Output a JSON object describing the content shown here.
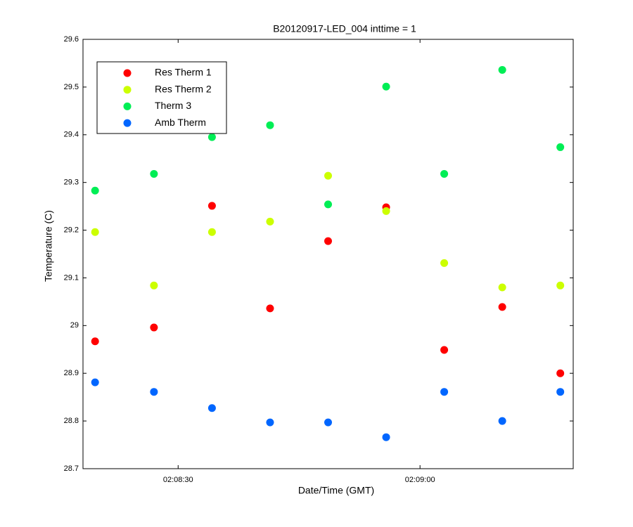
{
  "chart_data": {
    "type": "scatter",
    "title": "B20120917-LED_004 inttime = 1",
    "x_label": "Date/Time (GMT)",
    "y_label": "Temperature (C)",
    "x": [
      7699.7,
      7707.0,
      7714.2,
      7721.4,
      7728.6,
      7735.8,
      7743.0,
      7750.2,
      7757.4
    ],
    "series": [
      {
        "name": "Res Therm 1",
        "color": "#ff0000",
        "values": [
          28.967,
          28.996,
          29.251,
          29.036,
          29.177,
          29.248,
          28.949,
          29.039,
          28.9
        ]
      },
      {
        "name": "Res Therm 2",
        "color": "#ccff00",
        "values": [
          29.196,
          29.084,
          29.196,
          29.218,
          29.314,
          29.24,
          29.131,
          29.08,
          29.084
        ]
      },
      {
        "name": "Therm 3",
        "color": "#00ee55",
        "values": [
          29.283,
          29.318,
          29.395,
          29.42,
          29.254,
          29.501,
          29.318,
          29.536,
          29.374
        ]
      },
      {
        "name": "Amb Therm",
        "color": "#0066ff",
        "values": [
          28.881,
          28.861,
          28.827,
          28.797,
          28.797,
          28.766,
          28.861,
          28.8,
          28.861
        ]
      }
    ],
    "xlim": [
      7698.2,
      7759.0
    ],
    "xticks": [
      {
        "value": 7710,
        "label": "02:08:30"
      },
      {
        "value": 7740,
        "label": "02:09:00"
      }
    ],
    "ylim": [
      28.7,
      29.6
    ],
    "yticks": [
      28.7,
      28.8,
      28.9,
      29,
      29.1,
      29.2,
      29.3,
      29.4,
      29.5,
      29.6
    ],
    "legend": "upper left"
  }
}
